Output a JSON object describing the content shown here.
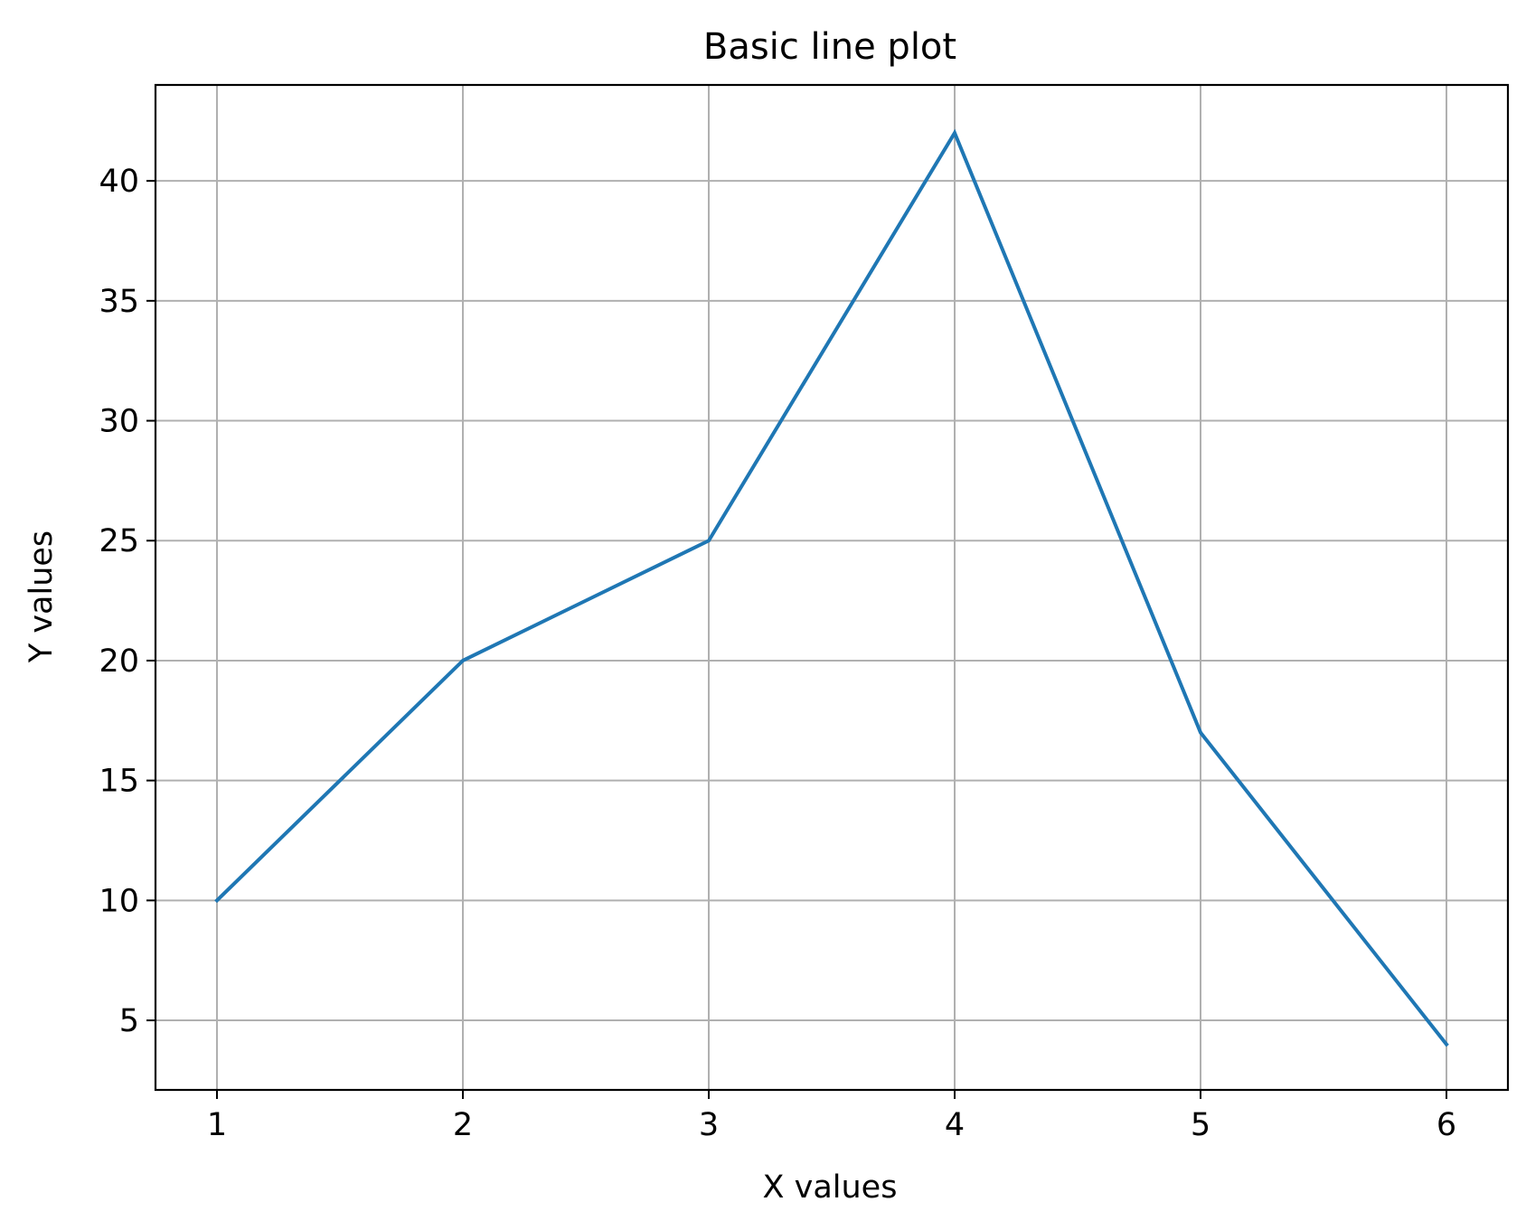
{
  "chart_data": {
    "type": "line",
    "title": "Basic line plot",
    "xlabel": "X values",
    "ylabel": "Y values",
    "xlim": [
      0.75,
      6.25
    ],
    "ylim": [
      2.1,
      44.0
    ],
    "xticks": [
      1,
      2,
      3,
      4,
      5,
      6
    ],
    "xtick_labels": [
      "1",
      "2",
      "3",
      "4",
      "5",
      "6"
    ],
    "yticks": [
      5,
      10,
      15,
      20,
      25,
      30,
      35,
      40
    ],
    "ytick_labels": [
      "5",
      "10",
      "15",
      "20",
      "25",
      "30",
      "35",
      "40"
    ],
    "grid": true,
    "series": [
      {
        "x": [
          1,
          2,
          3,
          4,
          5,
          6
        ],
        "y": [
          10,
          20,
          25,
          42,
          17,
          4
        ],
        "color": "#1f77b4"
      }
    ]
  },
  "colors": {
    "line": "#1f77b4",
    "grid": "#b0b0b0",
    "axes": "#000000",
    "background": "#ffffff"
  }
}
